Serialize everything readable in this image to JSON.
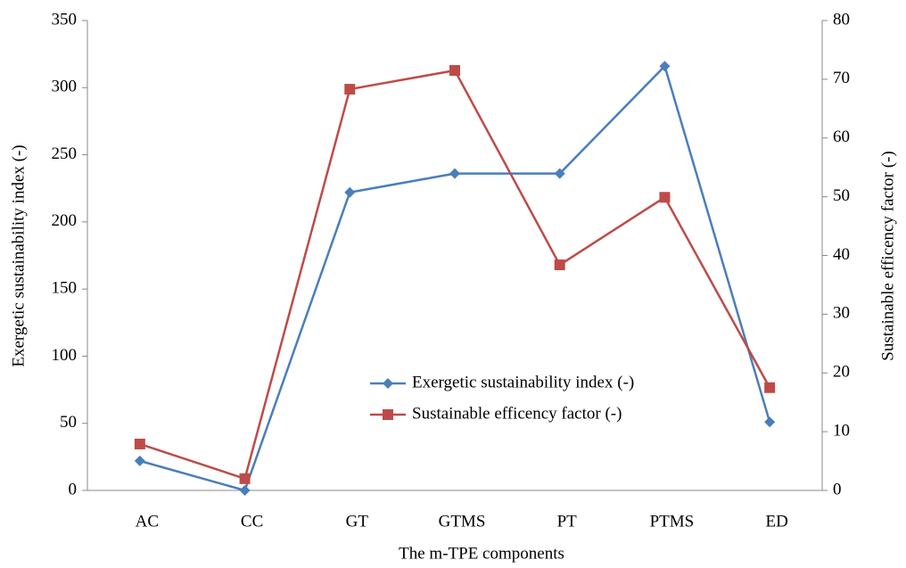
{
  "chart_data": {
    "type": "line",
    "xlabel": "The m-TPE components",
    "ylabel": "Exergetic sustainability index (-)",
    "y2label": "Sustainable efficency factor (-)",
    "categories": [
      "AC",
      "CC",
      "GT",
      "GTMS",
      "PT",
      "PTMS",
      "ED"
    ],
    "series": [
      {
        "name": "Exergetic sustainability index (-)",
        "color": "#4a7ebb",
        "marker": "diamond",
        "values": [
          22,
          0,
          222,
          236,
          236,
          316,
          51
        ]
      },
      {
        "name": "Sustainable efficency factor (-)",
        "color": "#be4b48",
        "marker": "square",
        "axis": "y2",
        "values": [
          7.9,
          2,
          68.3,
          71.5,
          38.4,
          49.9,
          17.5
        ]
      }
    ],
    "ylim": [
      0,
      350
    ],
    "yticks": [
      0,
      50,
      100,
      150,
      200,
      250,
      300,
      350
    ],
    "y2lim": [
      0,
      80
    ],
    "y2ticks": [
      0,
      10,
      20,
      30,
      40,
      50,
      60,
      70,
      80
    ],
    "grid": false
  }
}
